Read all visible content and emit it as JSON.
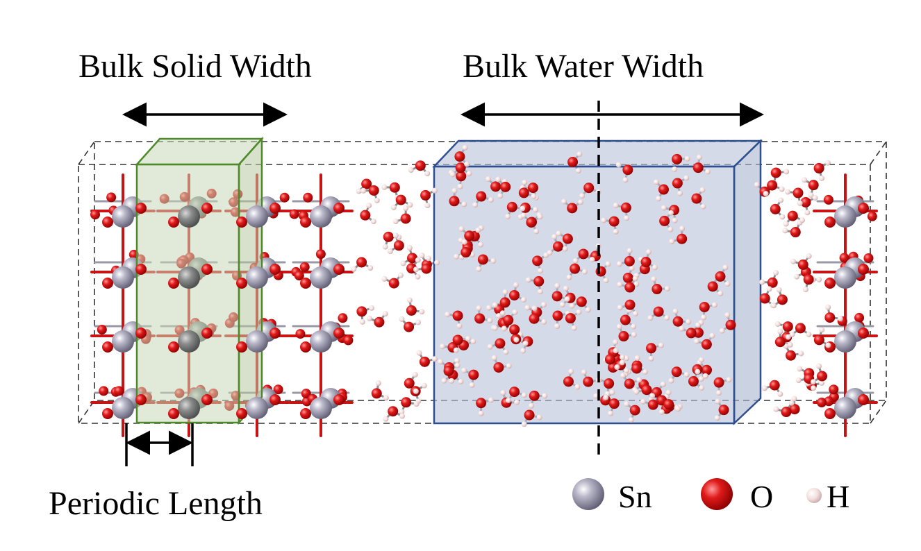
{
  "labels": {
    "bulk_solid_width": "Bulk Solid Width",
    "bulk_water_width": "Bulk Water Width",
    "periodic_length": "Periodic Length"
  },
  "legend": [
    {
      "element": "Sn",
      "color": "#8c8a9e"
    },
    {
      "element": "O",
      "color": "#e01a1a"
    },
    {
      "element": "H",
      "color": "#f2dede"
    }
  ],
  "colors": {
    "solid_box_fill": "#c9d8b8",
    "solid_box_edge": "#4f8a2a",
    "water_box_fill": "#b8c2d8",
    "water_box_edge": "#2e4f8f",
    "bond": "#8a8f94"
  }
}
